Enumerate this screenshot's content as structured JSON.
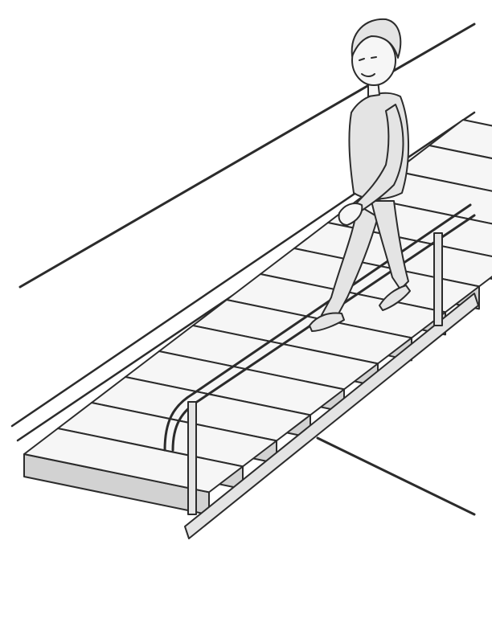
{
  "illustration": {
    "subject": "",
    "style": "pencil-sketch",
    "stroke_color": "#2b2b2b",
    "shade_color": "#d2d2d2",
    "background_color": "#ffffff",
    "step_count": 13,
    "icons": [
      "person",
      "staircase",
      "handrail"
    ]
  }
}
